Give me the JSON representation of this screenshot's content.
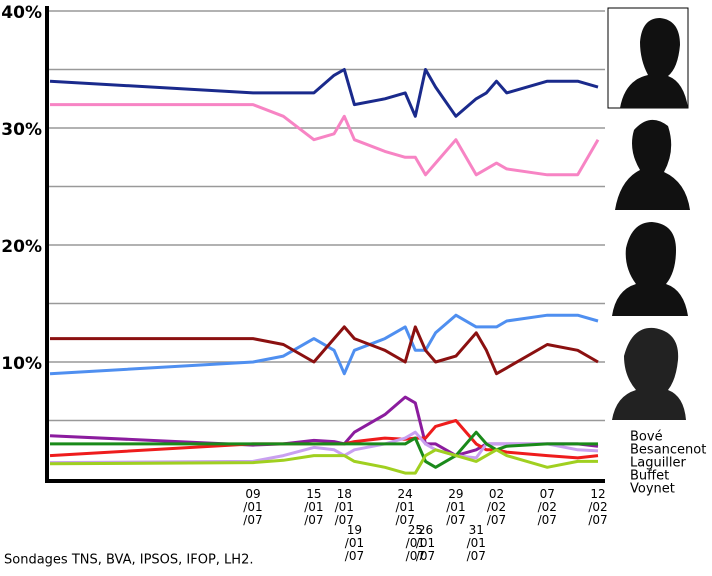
{
  "chart_data": {
    "type": "line",
    "x": [
      "20/12/06",
      "09/01/07",
      "12/01/07",
      "15/01/07",
      "17/01/07",
      "18/01/07",
      "19/01/07",
      "22/01/07",
      "24/01/07",
      "25/01/07",
      "26/01/07",
      "27/01/07",
      "29/01/07",
      "31/01/07",
      "01/02/07",
      "02/02/07",
      "03/02/07",
      "07/02/07",
      "10/02/07",
      "12/02/07"
    ],
    "xlim": [
      "20/12/06",
      "12/02/07"
    ],
    "xticks": [
      "09/01/07",
      "15/01/07",
      "18/01/07",
      "19/01/07",
      "24/01/07",
      "25/01/07",
      "26/01/07",
      "29/01/07",
      "31/01/07",
      "02/02/07",
      "07/02/07",
      "12/02/07"
    ],
    "ylim": [
      0,
      40
    ],
    "yticks": [
      {
        "value": 10,
        "label": "10%"
      },
      {
        "value": 20,
        "label": "20%"
      },
      {
        "value": 30,
        "label": "30%"
      },
      {
        "value": 40,
        "label": "40%"
      }
    ],
    "ygrid": [
      5,
      10,
      15,
      20,
      25,
      30,
      35,
      40
    ],
    "series": [
      {
        "color": "#1a2a8c",
        "values": [
          34,
          33,
          33,
          33,
          34.5,
          35,
          32,
          32.5,
          33,
          31,
          35,
          33.5,
          31,
          32.5,
          33,
          34,
          33,
          34,
          34,
          33.5
        ]
      },
      {
        "color": "#f784c4",
        "values": [
          32,
          32,
          31,
          29,
          29.5,
          31,
          29,
          28,
          27.5,
          27.5,
          26,
          27,
          29,
          26,
          26.5,
          27,
          26.5,
          26,
          26,
          29
        ]
      },
      {
        "color": "#4f8ff0",
        "values": [
          9,
          10,
          10.5,
          12,
          11,
          9,
          11,
          12,
          13,
          11,
          11,
          12.5,
          14,
          13,
          13,
          13,
          13.5,
          14,
          14,
          13.5
        ]
      },
      {
        "color": "#8b1010",
        "values": [
          12,
          12,
          11.5,
          10,
          12,
          13,
          12,
          11,
          10,
          13,
          11,
          10,
          10.5,
          12.5,
          11,
          9,
          9.5,
          11.5,
          11,
          10
        ]
      },
      {
        "name": "Bové",
        "color": "#8b1c9e",
        "values": [
          3.7,
          2.9,
          3,
          3.3,
          3.2,
          3,
          4,
          5.5,
          7,
          6.5,
          3,
          3,
          2,
          2.5,
          3,
          3,
          3,
          3,
          3,
          2.8
        ]
      },
      {
        "name": "Besancenot",
        "color": "#ee1c1c",
        "values": [
          2,
          3,
          3,
          3,
          3,
          3,
          3.2,
          3.5,
          3.4,
          3.5,
          3.5,
          4.5,
          5,
          3,
          2.5,
          2.5,
          2.3,
          2,
          1.8,
          2
        ]
      },
      {
        "name": "Laguiller",
        "color": "#c9a0f0",
        "values": [
          1.4,
          1.5,
          2,
          2.7,
          2.5,
          2,
          2.5,
          3,
          3.5,
          4,
          3,
          2.5,
          2,
          1.8,
          3,
          3,
          3,
          3,
          2.5,
          2.4
        ]
      },
      {
        "name": "Buffet",
        "color": "#1a8a1a",
        "values": [
          3,
          3,
          3,
          3,
          3,
          3,
          3,
          3,
          3,
          3.5,
          1.5,
          1,
          2,
          4,
          3,
          2.5,
          2.8,
          3,
          3,
          3
        ]
      },
      {
        "name": "Voynet",
        "color": "#a0d020",
        "values": [
          1.3,
          1.4,
          1.6,
          2,
          2,
          2,
          1.5,
          1,
          0.5,
          0.5,
          2,
          2.5,
          2,
          1.5,
          2,
          2.5,
          2,
          1,
          1.5,
          1.5
        ]
      }
    ],
    "source": "Sondages TNS, BVA, IPSOS, IFOP, LH2."
  }
}
